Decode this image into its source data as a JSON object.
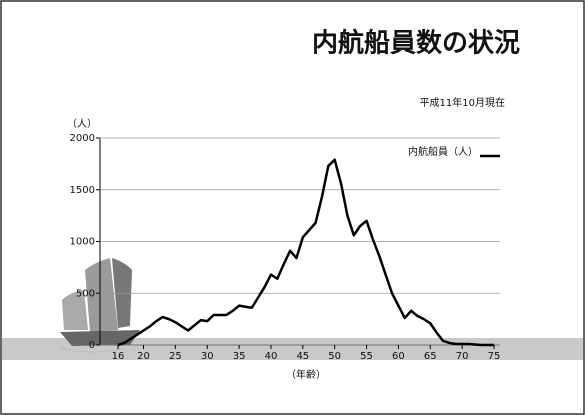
{
  "chart_data": {
    "type": "line",
    "title": "内航船員数の状況",
    "subtitle": "平成11年10月現在",
    "y_label": "（人）",
    "x_label": "（年齢）",
    "x": [
      16,
      17,
      18,
      19,
      20,
      21,
      22,
      23,
      24,
      25,
      26,
      27,
      28,
      29,
      30,
      31,
      32,
      33,
      34,
      35,
      36,
      37,
      38,
      39,
      40,
      41,
      42,
      43,
      44,
      45,
      46,
      47,
      48,
      49,
      50,
      51,
      52,
      53,
      54,
      55,
      56,
      57,
      58,
      59,
      60,
      61,
      62,
      63,
      64,
      65,
      66,
      67,
      68,
      69,
      70,
      71,
      72,
      73,
      74,
      75
    ],
    "series": [
      {
        "name": "内航船員（人）",
        "color": "#000000",
        "values": [
          0,
          20,
          60,
          100,
          140,
          180,
          230,
          270,
          250,
          220,
          180,
          140,
          190,
          240,
          230,
          290,
          290,
          290,
          330,
          380,
          370,
          360,
          460,
          560,
          680,
          640,
          780,
          910,
          840,
          1040,
          1110,
          1180,
          1430,
          1730,
          1790,
          1560,
          1250,
          1060,
          1150,
          1200,
          1020,
          860,
          680,
          500,
          380,
          260,
          330,
          280,
          250,
          210,
          120,
          40,
          20,
          10,
          10,
          10,
          5,
          0,
          0,
          0
        ]
      }
    ],
    "xlim": [
      16,
      75
    ],
    "xticks": [
      16,
      20,
      25,
      30,
      35,
      40,
      45,
      50,
      55,
      60,
      65,
      70,
      75
    ],
    "ylim": [
      0,
      2000
    ],
    "yticks": [
      0,
      500,
      1000,
      1500,
      2000
    ],
    "grid": true,
    "legend": "top-right"
  }
}
